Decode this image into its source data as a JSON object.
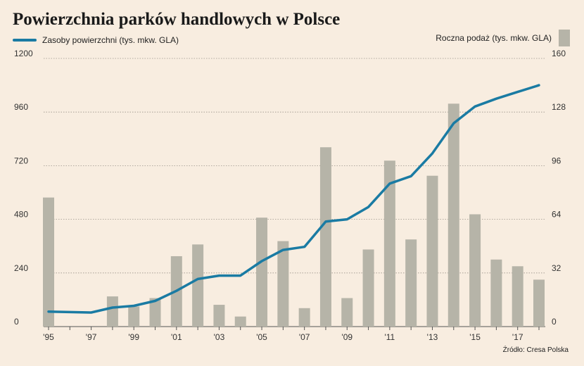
{
  "chart_data": {
    "type": "bar+line",
    "title": "Powierzchnia parków handlowych w Polsce",
    "source": "Źródło: Cresa Polska",
    "x": [
      "'95",
      "'96",
      "'97",
      "'98",
      "'99",
      "'00",
      "'01",
      "'02",
      "'03",
      "'04",
      "'05",
      "'06",
      "'07",
      "'08",
      "'09",
      "'10",
      "'11",
      "'12",
      "'13",
      "'14",
      "'15",
      "'16",
      "'17",
      "'18"
    ],
    "x_tick_labels": [
      "'95",
      "",
      "'97",
      "",
      "'99",
      "",
      "'01",
      "",
      "'03",
      "",
      "'05",
      "",
      "'07",
      "",
      "'09",
      "",
      "'11",
      "",
      "'13",
      "",
      "'15",
      "",
      "'17",
      ""
    ],
    "left_axis": {
      "ticks": [
        "1200",
        "960",
        "720",
        "480",
        "240",
        "0"
      ],
      "ylim": [
        0,
        1200
      ]
    },
    "right_axis": {
      "ticks": [
        "160",
        "128",
        "96",
        "64",
        "32",
        "0"
      ],
      "ylim": [
        0,
        160
      ]
    },
    "series": [
      {
        "name": "Zasoby powierzchni (tys. mkw. GLA)",
        "type": "line",
        "axis": "left",
        "color": "#1a7ba3",
        "values": [
          67,
          65,
          63,
          85,
          93,
          115,
          160,
          213,
          228,
          228,
          293,
          343,
          357,
          470,
          480,
          535,
          640,
          673,
          775,
          910,
          985,
          1020,
          1050,
          1080
        ]
      },
      {
        "name": "Roczna podaż (tys. mkw. GLA)",
        "type": "bar",
        "axis": "right",
        "color": "#b6b4a8",
        "values": [
          77,
          0,
          0,
          18,
          12,
          17,
          42,
          49,
          13,
          6,
          65,
          51,
          11,
          107,
          17,
          46,
          99,
          52,
          90,
          133,
          67,
          40,
          36,
          28
        ]
      }
    ]
  }
}
